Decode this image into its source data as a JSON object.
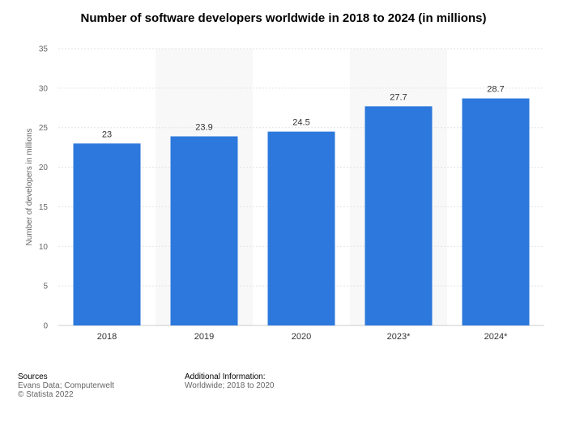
{
  "colors": {
    "bar": "#2c78dc",
    "band": "#f8f8f8",
    "grid": "#e3e3e3",
    "axis_text": "#666666",
    "label_text": "#333333"
  },
  "chart_data": {
    "type": "bar",
    "title": "Number of software developers worldwide in 2018 to 2024 (in millions)",
    "categories": [
      "2018",
      "2019",
      "2020",
      "2023*",
      "2024*"
    ],
    "values": [
      23,
      23.9,
      24.5,
      27.7,
      28.7
    ],
    "data_labels": [
      "23",
      "23.9",
      "24.5",
      "27.7",
      "28.7"
    ],
    "xlabel": "",
    "ylabel": "Number of developers in millions",
    "ylim": [
      0,
      35
    ],
    "yticks": [
      0,
      5,
      10,
      15,
      20,
      25,
      30,
      35
    ],
    "grid": true
  },
  "footer": {
    "sources_title": "Sources",
    "sources_line1": "Evans Data; Computerwelt",
    "sources_line2": "© Statista 2022",
    "addinfo_title": "Additional Information:",
    "addinfo_line1": "Worldwide; 2018 to 2020"
  }
}
